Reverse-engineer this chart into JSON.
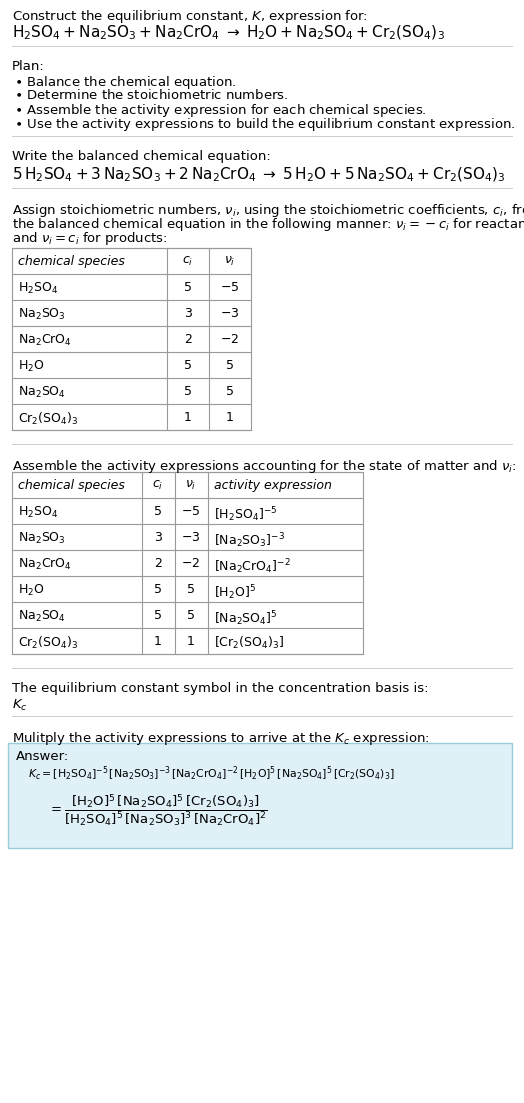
{
  "title_line1": "Construct the equilibrium constant, $K$, expression for:",
  "title_rxn": "$\\mathrm{H_2SO_4 + Na_2SO_3 + Na_2CrO_4 \\;\\rightarrow\\; H_2O + Na_2SO_4 + Cr_2(SO_4)_3}$",
  "plan_header": "Plan:",
  "plan_lines": [
    "$\\bullet$ Balance the chemical equation.",
    "$\\bullet$ Determine the stoichiometric numbers.",
    "$\\bullet$ Assemble the activity expression for each chemical species.",
    "$\\bullet$ Use the activity expressions to build the equilibrium constant expression."
  ],
  "balanced_header": "Write the balanced chemical equation:",
  "balanced_rxn": "$\\mathrm{5\\,H_2SO_4 + 3\\,Na_2SO_3 + 2\\,Na_2CrO_4 \\;\\rightarrow\\; 5\\,H_2O + 5\\,Na_2SO_4 + Cr_2(SO_4)_3}$",
  "stoich_text": [
    "Assign stoichiometric numbers, $\\nu_i$, using the stoichiometric coefficients, $c_i$, from",
    "the balanced chemical equation in the following manner: $\\nu_i = -c_i$ for reactants",
    "and $\\nu_i = c_i$ for products:"
  ],
  "table1_header": [
    "chemical species",
    "$c_i$",
    "$\\nu_i$"
  ],
  "table1_rows": [
    [
      "$\\mathrm{H_2SO_4}$",
      "5",
      "$-5$"
    ],
    [
      "$\\mathrm{Na_2SO_3}$",
      "3",
      "$-3$"
    ],
    [
      "$\\mathrm{Na_2CrO_4}$",
      "2",
      "$-2$"
    ],
    [
      "$\\mathrm{H_2O}$",
      "5",
      "5"
    ],
    [
      "$\\mathrm{Na_2SO_4}$",
      "5",
      "5"
    ],
    [
      "$\\mathrm{Cr_2(SO_4)_3}$",
      "1",
      "1"
    ]
  ],
  "activity_text": "Assemble the activity expressions accounting for the state of matter and $\\nu_i$:",
  "table2_header": [
    "chemical species",
    "$c_i$",
    "$\\nu_i$",
    "activity expression"
  ],
  "table2_rows": [
    [
      "$\\mathrm{H_2SO_4}$",
      "5",
      "$-5$",
      "$[\\mathrm{H_2SO_4}]^{-5}$"
    ],
    [
      "$\\mathrm{Na_2SO_3}$",
      "3",
      "$-3$",
      "$[\\mathrm{Na_2SO_3}]^{-3}$"
    ],
    [
      "$\\mathrm{Na_2CrO_4}$",
      "2",
      "$-2$",
      "$[\\mathrm{Na_2CrO_4}]^{-2}$"
    ],
    [
      "$\\mathrm{H_2O}$",
      "5",
      "5",
      "$[\\mathrm{H_2O}]^{5}$"
    ],
    [
      "$\\mathrm{Na_2SO_4}$",
      "5",
      "5",
      "$[\\mathrm{Na_2SO_4}]^{5}$"
    ],
    [
      "$\\mathrm{Cr_2(SO_4)_3}$",
      "1",
      "1",
      "$[\\mathrm{Cr_2(SO_4)_3}]$"
    ]
  ],
  "kc_header": "The equilibrium constant symbol in the concentration basis is:",
  "kc_symbol": "$K_c$",
  "multiply_text": "Mulitply the activity expressions to arrive at the $K_c$ expression:",
  "answer_label": "Answer:",
  "answer_eq1": "$K_c = [\\mathrm{H_2SO_4}]^{-5}\\,[\\mathrm{Na_2SO_3}]^{-3}\\,[\\mathrm{Na_2CrO_4}]^{-2}\\,[\\mathrm{H_2O}]^5\\,[\\mathrm{Na_2SO_4}]^5\\,[\\mathrm{Cr_2(SO_4)_3}]$",
  "answer_eq2a": "$= \\dfrac{[\\mathrm{H_2O}]^5\\,[\\mathrm{Na_2SO_4}]^5\\,[\\mathrm{Cr_2(SO_4)_3}]}{[\\mathrm{H_2SO_4}]^5\\,[\\mathrm{Na_2SO_3}]^3\\,[\\mathrm{Na_2CrO_4}]^2}$",
  "bg": "#ffffff",
  "fg": "#000000",
  "tbl_border": "#999999",
  "ans_bg": "#dff0f7",
  "ans_border": "#99ccdd",
  "sep_color": "#cccccc"
}
